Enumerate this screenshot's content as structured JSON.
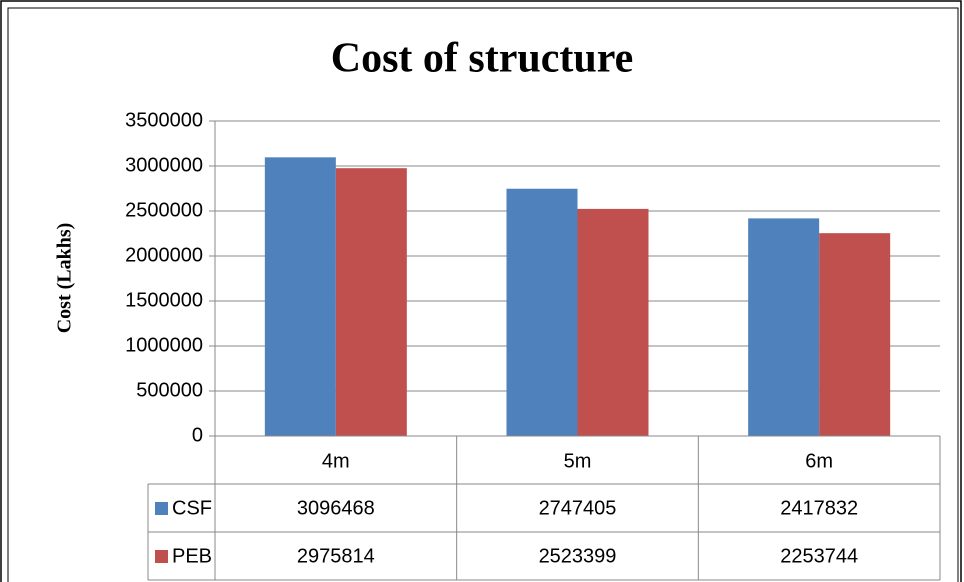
{
  "chart_data": {
    "type": "bar",
    "title": "Cost of structure",
    "y_label": "Cost (Lakhs)",
    "categories": [
      "4m",
      "5m",
      "6m"
    ],
    "series": [
      {
        "name": "CSF",
        "color": "#4f81bd",
        "values": [
          3096468,
          2747405,
          2417832
        ]
      },
      {
        "name": "PEB",
        "color": "#c0504d",
        "values": [
          2975814,
          2523399,
          2253744
        ]
      }
    ],
    "ylim": [
      0,
      3500000
    ],
    "yticks": [
      0,
      500000,
      1000000,
      1500000,
      2000000,
      2500000,
      3000000,
      3500000
    ],
    "grid": true,
    "data_table": true
  }
}
